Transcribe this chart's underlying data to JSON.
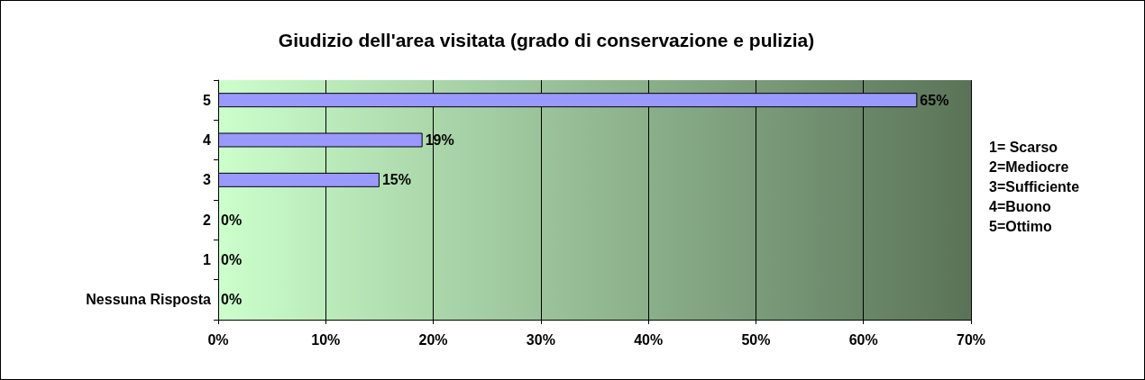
{
  "chart_data": {
    "type": "bar",
    "orientation": "horizontal",
    "title": "Giudizio dell'area visitata (grado di conservazione e pulizia)",
    "categories": [
      "5",
      "4",
      "3",
      "2",
      "1",
      "Nessuna Risposta"
    ],
    "values": [
      65,
      19,
      15,
      0,
      0,
      0
    ],
    "value_labels": [
      "65%",
      "19%",
      "15%",
      "0%",
      "0%",
      "0%"
    ],
    "color": "#9999ff",
    "xlim": [
      0,
      70
    ],
    "xticks": [
      {
        "value": 0,
        "label": "0%"
      },
      {
        "value": 10,
        "label": "10%"
      },
      {
        "value": 20,
        "label": "20%"
      },
      {
        "value": 30,
        "label": "30%"
      },
      {
        "value": 40,
        "label": "40%"
      },
      {
        "value": 50,
        "label": "50%"
      },
      {
        "value": 60,
        "label": "60%"
      },
      {
        "value": 70,
        "label": "70%"
      }
    ],
    "grid": "x",
    "annotations": [
      "1= Scarso",
      "2=Mediocre",
      "3=Sufficiente",
      "4=Buono",
      "5=Ottimo"
    ]
  }
}
